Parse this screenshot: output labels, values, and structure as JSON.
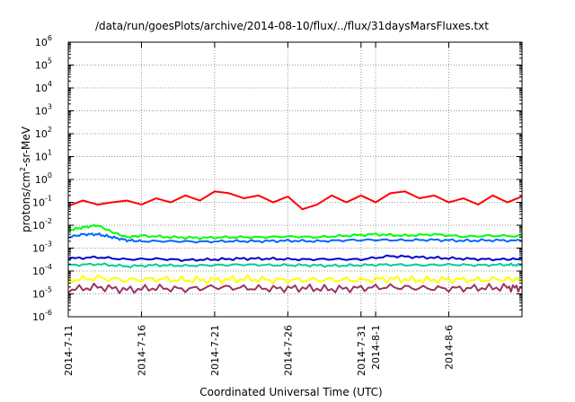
{
  "chart_data": {
    "type": "line",
    "title": "/data/run/goesPlots/archive/2014-08-10/flux/../flux/31daysMarsFluxes.txt",
    "xlabel": "Coordinated Universal Time (UTC)",
    "ylabel": {
      "base": "protons/cm",
      "sup": "2",
      "rest": "-sr-MeV"
    },
    "y_scale": "log",
    "ylim_exponents": [
      -6,
      6
    ],
    "y_ticks": [
      {
        "base": "10",
        "exp": "6"
      },
      {
        "base": "10",
        "exp": "5"
      },
      {
        "base": "10",
        "exp": "4"
      },
      {
        "base": "10",
        "exp": "3"
      },
      {
        "base": "10",
        "exp": "2"
      },
      {
        "base": "10",
        "exp": "1"
      },
      {
        "base": "10",
        "exp": "0"
      },
      {
        "base": "10",
        "exp": "-1"
      },
      {
        "base": "10",
        "exp": "-2"
      },
      {
        "base": "10",
        "exp": "-3"
      },
      {
        "base": "10",
        "exp": "-4"
      },
      {
        "base": "10",
        "exp": "-5"
      },
      {
        "base": "10",
        "exp": "-6"
      }
    ],
    "xlim": [
      "2014-07-11",
      "2014-08-11"
    ],
    "x_ticks": [
      "2014-7-11",
      "2014-7-16",
      "2014-7-21",
      "2014-7-26",
      "2014-7-31",
      "2014-8-1",
      "2014-8-6"
    ],
    "x_tick_dates": [
      "2014-07-11",
      "2014-07-16",
      "2014-07-21",
      "2014-07-26",
      "2014-07-31",
      "2014-08-01",
      "2014-08-06"
    ],
    "grid": true,
    "series": [
      {
        "color": "#ff0000",
        "x": [
          "2014-07-11",
          "2014-07-12",
          "2014-07-13",
          "2014-07-14",
          "2014-07-15",
          "2014-07-16",
          "2014-07-17",
          "2014-07-18",
          "2014-07-19",
          "2014-07-20",
          "2014-07-21",
          "2014-07-22",
          "2014-07-23",
          "2014-07-24",
          "2014-07-25",
          "2014-07-26",
          "2014-07-27",
          "2014-07-28",
          "2014-07-29",
          "2014-07-30",
          "2014-07-31",
          "2014-08-01",
          "2014-08-02",
          "2014-08-03",
          "2014-08-04",
          "2014-08-05",
          "2014-08-06",
          "2014-08-07",
          "2014-08-08",
          "2014-08-09",
          "2014-08-10",
          "2014-08-11"
        ],
        "y": [
          0.07,
          0.12,
          0.08,
          0.1,
          0.12,
          0.08,
          0.15,
          0.1,
          0.2,
          0.12,
          0.3,
          0.25,
          0.15,
          0.2,
          0.1,
          0.18,
          0.05,
          0.08,
          0.2,
          0.1,
          0.2,
          0.1,
          0.25,
          0.3,
          0.15,
          0.2,
          0.1,
          0.15,
          0.08,
          0.2,
          0.1,
          0.18
        ]
      },
      {
        "color": "#00ff00",
        "x": [
          "2014-07-11",
          "2014-07-12",
          "2014-07-13",
          "2014-07-14",
          "2014-07-15",
          "2014-07-16",
          "2014-07-18",
          "2014-07-20",
          "2014-07-22",
          "2014-07-24",
          "2014-07-26",
          "2014-07-28",
          "2014-07-30",
          "2014-08-01",
          "2014-08-03",
          "2014-08-05",
          "2014-08-07",
          "2014-08-09",
          "2014-08-11"
        ],
        "y": [
          0.006,
          0.008,
          0.01,
          0.005,
          0.003,
          0.0035,
          0.003,
          0.0028,
          0.003,
          0.003,
          0.0032,
          0.003,
          0.0035,
          0.004,
          0.0035,
          0.004,
          0.0032,
          0.0035,
          0.0033
        ]
      },
      {
        "color": "#0066ff",
        "x": [
          "2014-07-11",
          "2014-07-12",
          "2014-07-13",
          "2014-07-14",
          "2014-07-15",
          "2014-07-16",
          "2014-07-18",
          "2014-07-20",
          "2014-07-22",
          "2014-07-24",
          "2014-07-26",
          "2014-07-28",
          "2014-07-30",
          "2014-08-01",
          "2014-08-03",
          "2014-08-05",
          "2014-08-07",
          "2014-08-09",
          "2014-08-11"
        ],
        "y": [
          0.003,
          0.004,
          0.004,
          0.003,
          0.0022,
          0.002,
          0.002,
          0.0019,
          0.002,
          0.002,
          0.0021,
          0.002,
          0.0022,
          0.0023,
          0.0022,
          0.0023,
          0.0021,
          0.0022,
          0.0021
        ]
      },
      {
        "color": "#0000cc",
        "x": [
          "2014-07-11",
          "2014-07-13",
          "2014-07-15",
          "2014-07-17",
          "2014-07-19",
          "2014-07-21",
          "2014-07-23",
          "2014-07-25",
          "2014-07-27",
          "2014-07-29",
          "2014-07-31",
          "2014-08-02",
          "2014-08-04",
          "2014-08-06",
          "2014-08-08",
          "2014-08-10",
          "2014-08-11"
        ],
        "y": [
          0.00035,
          0.0004,
          0.00032,
          0.00034,
          0.0003,
          0.00032,
          0.00035,
          0.00034,
          0.00032,
          0.00033,
          0.00032,
          0.00045,
          0.0004,
          0.00036,
          0.00033,
          0.00032,
          0.00035
        ]
      },
      {
        "color": "#00cc99",
        "x": [
          "2014-07-11",
          "2014-07-13",
          "2014-07-15",
          "2014-07-17",
          "2014-07-19",
          "2014-07-21",
          "2014-07-23",
          "2014-07-25",
          "2014-07-27",
          "2014-07-29",
          "2014-07-31",
          "2014-08-02",
          "2014-08-04",
          "2014-08-06",
          "2014-08-08",
          "2014-08-10",
          "2014-08-11"
        ],
        "y": [
          0.00018,
          0.0002,
          0.00016,
          0.00018,
          0.00017,
          0.00018,
          0.00019,
          0.00018,
          0.00018,
          0.00017,
          0.00018,
          0.00019,
          0.00018,
          0.00019,
          0.00018,
          0.00019,
          0.00018
        ]
      },
      {
        "color": "#ffff00",
        "x": [
          "2014-07-11",
          "2014-07-13",
          "2014-07-15",
          "2014-07-17",
          "2014-07-19",
          "2014-07-21",
          "2014-07-23",
          "2014-07-25",
          "2014-07-27",
          "2014-07-29",
          "2014-07-31",
          "2014-08-02",
          "2014-08-04",
          "2014-08-06",
          "2014-08-08",
          "2014-08-10",
          "2014-08-11"
        ],
        "y": [
          4e-05,
          5e-05,
          4e-05,
          4.5e-05,
          4e-05,
          4e-05,
          4.5e-05,
          4e-05,
          4e-05,
          4.2e-05,
          4e-05,
          4.5e-05,
          4e-05,
          4.2e-05,
          4e-05,
          4.5e-05,
          4e-05
        ]
      },
      {
        "color": "#993366",
        "x": [
          "2014-07-11",
          "2014-07-13",
          "2014-07-15",
          "2014-07-17",
          "2014-07-19",
          "2014-07-21",
          "2014-07-23",
          "2014-07-25",
          "2014-07-27",
          "2014-07-29",
          "2014-07-31",
          "2014-08-02",
          "2014-08-04",
          "2014-08-06",
          "2014-08-08",
          "2014-08-10",
          "2014-08-11"
        ],
        "y": [
          1.5e-05,
          2e-05,
          1.5e-05,
          1.8e-05,
          1.6e-05,
          2e-05,
          1.8e-05,
          1.7e-05,
          1.8e-05,
          1.6e-05,
          1.8e-05,
          2e-05,
          1.8e-05,
          1.7e-05,
          1.8e-05,
          1.9e-05,
          1.8e-05
        ]
      }
    ]
  }
}
